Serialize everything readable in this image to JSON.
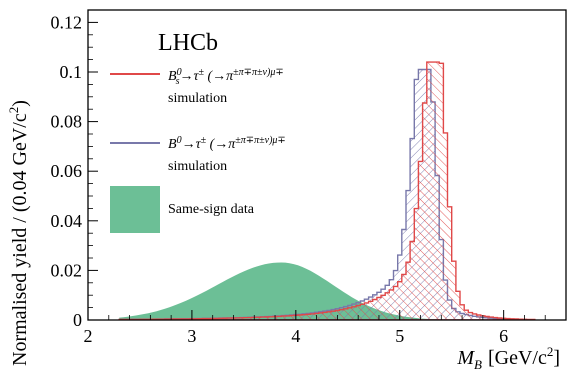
{
  "chart_data": {
    "type": "area",
    "title": "",
    "watermark": "LHCb",
    "xlabel_var": "M",
    "xlabel_sub": "B",
    "xlabel_unit": "[GeV/c",
    "xlabel_pow": "2",
    "xlabel_close": "]",
    "ylabel_main": "Normalised yield / (0.04 GeV/c",
    "ylabel_pow": "2",
    "ylabel_close": ")",
    "xlim": [
      2.0,
      6.6
    ],
    "ylim": [
      0.0,
      0.125
    ],
    "x_ticks": [
      2,
      3,
      4,
      5,
      6
    ],
    "x_tick_labels": [
      "2",
      "3",
      "4",
      "5",
      "6"
    ],
    "y_ticks": [
      0,
      0.02,
      0.04,
      0.06,
      0.08,
      0.1,
      0.12
    ],
    "y_tick_labels": [
      "0",
      "0.02",
      "0.04",
      "0.06",
      "0.08",
      "0.1",
      "0.12"
    ],
    "bin_width": 0.04,
    "legend_position": "top-left",
    "series": [
      {
        "key": "data",
        "name": "Same-sign data",
        "color": "#6cbf96",
        "style": "filled",
        "shape": "asymmetric gaussian",
        "peak_x": 3.86,
        "peak_y": 0.0232,
        "sigma_left": 0.62,
        "sigma_right": 0.5,
        "range": [
          2.3,
          5.5
        ]
      },
      {
        "key": "b0",
        "name_line1": "B0 → τ± (→π±π∓π±ν)μ∓",
        "name_line2": "simulation",
        "color": "#7878aa",
        "style": "hatched step",
        "shape": "peaked",
        "peak_x": 5.26,
        "peak_y": 0.101,
        "range": [
          2.3,
          6.3
        ]
      },
      {
        "key": "bs",
        "name_line1": "Bs0 → τ± (→π±π∓π±ν)μ∓",
        "name_line2": "simulation",
        "color": "#e04848",
        "style": "hatched step",
        "shape": "peaked",
        "peak_x": 5.36,
        "peak_y": 0.104,
        "range": [
          2.3,
          6.3
        ]
      }
    ]
  },
  "legend": {
    "bs": {
      "b": "B",
      "sup": "0",
      "sub": "s",
      "decay": "→τ",
      "pm1": "±",
      "paren": " (→π",
      "rest": "±π∓π±ν)μ∓",
      "line2": "simulation"
    },
    "b0": {
      "b": "B",
      "sup": "0",
      "decay": "→τ",
      "pm1": "±",
      "paren": " (→π",
      "rest": "±π∓π±ν)μ∓",
      "line2": "simulation"
    },
    "data": {
      "label": "Same-sign data"
    }
  }
}
